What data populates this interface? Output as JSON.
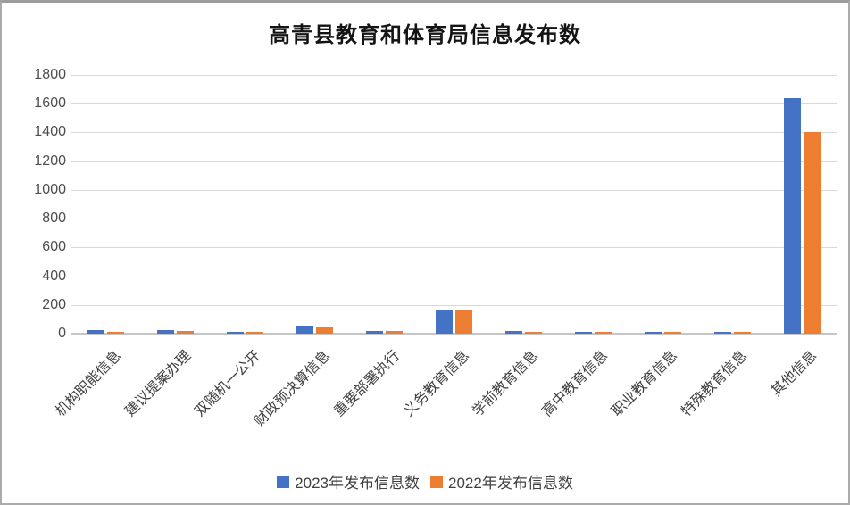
{
  "chart_data": {
    "type": "bar",
    "title": "高青县教育和体育局信息发布数",
    "categories": [
      "机构职能信息",
      "建议提案办理",
      "双随机一公开",
      "财政预决算信息",
      "重要部署执行",
      "义务教育信息",
      "学前教育信息",
      "高中教育信息",
      "职业教育信息",
      "特殊教育信息",
      "其他信息"
    ],
    "series": [
      {
        "name": "2023年发布信息数",
        "color": "#4472C4",
        "values": [
          22,
          22,
          12,
          55,
          20,
          160,
          20,
          12,
          12,
          12,
          1640
        ]
      },
      {
        "name": "2022年发布信息数",
        "color": "#ED7D31",
        "values": [
          12,
          18,
          10,
          52,
          18,
          160,
          10,
          10,
          10,
          10,
          1400
        ]
      }
    ],
    "xlabel": "",
    "ylabel": "",
    "ylim": [
      0,
      1800
    ],
    "yticks": [
      0,
      200,
      400,
      600,
      800,
      1000,
      1200,
      1400,
      1600,
      1800
    ],
    "grid": true,
    "legend_position": "bottom"
  },
  "colors": {
    "series_2023": "#4472C4",
    "series_2022": "#ED7D31",
    "gridline": "#d9d9d9",
    "tick_text": "#4d4d4d",
    "title_text": "#141414"
  }
}
